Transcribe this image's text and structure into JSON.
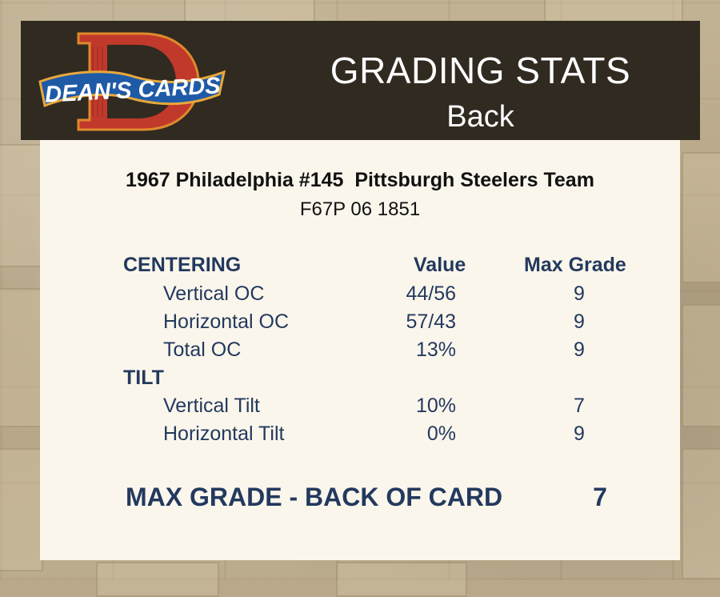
{
  "header": {
    "logo_text": "DEAN'S CARDS",
    "logo_letter": "D",
    "title": "GRADING STATS",
    "subtitle": "Back"
  },
  "card": {
    "title": "1967 Philadelphia #145  Pittsburgh Steelers Team",
    "cert": "F67P 06 1851"
  },
  "table": {
    "columns": {
      "value": "Value",
      "max_grade": "Max Grade"
    },
    "sections": [
      {
        "heading": "CENTERING",
        "rows": [
          {
            "label": "Vertical OC",
            "value": "44/56",
            "max_grade": "9"
          },
          {
            "label": "Horizontal OC",
            "value": "57/43",
            "max_grade": "9"
          },
          {
            "label": "Total OC",
            "value": "13%",
            "max_grade": "9"
          }
        ]
      },
      {
        "heading": "TILT",
        "rows": [
          {
            "label": "Vertical Tilt",
            "value": "10%",
            "max_grade": "7"
          },
          {
            "label": "Horizontal Tilt",
            "value": "0%",
            "max_grade": "9"
          }
        ]
      }
    ]
  },
  "footer": {
    "label": "MAX GRADE - BACK OF CARD",
    "value": "7"
  },
  "colors": {
    "header_bg": "#302a21",
    "panel_bg": "#fbf6ec",
    "text_navy": "#23395e",
    "logo_red": "#c0392b",
    "logo_blue": "#1f5aa6"
  }
}
